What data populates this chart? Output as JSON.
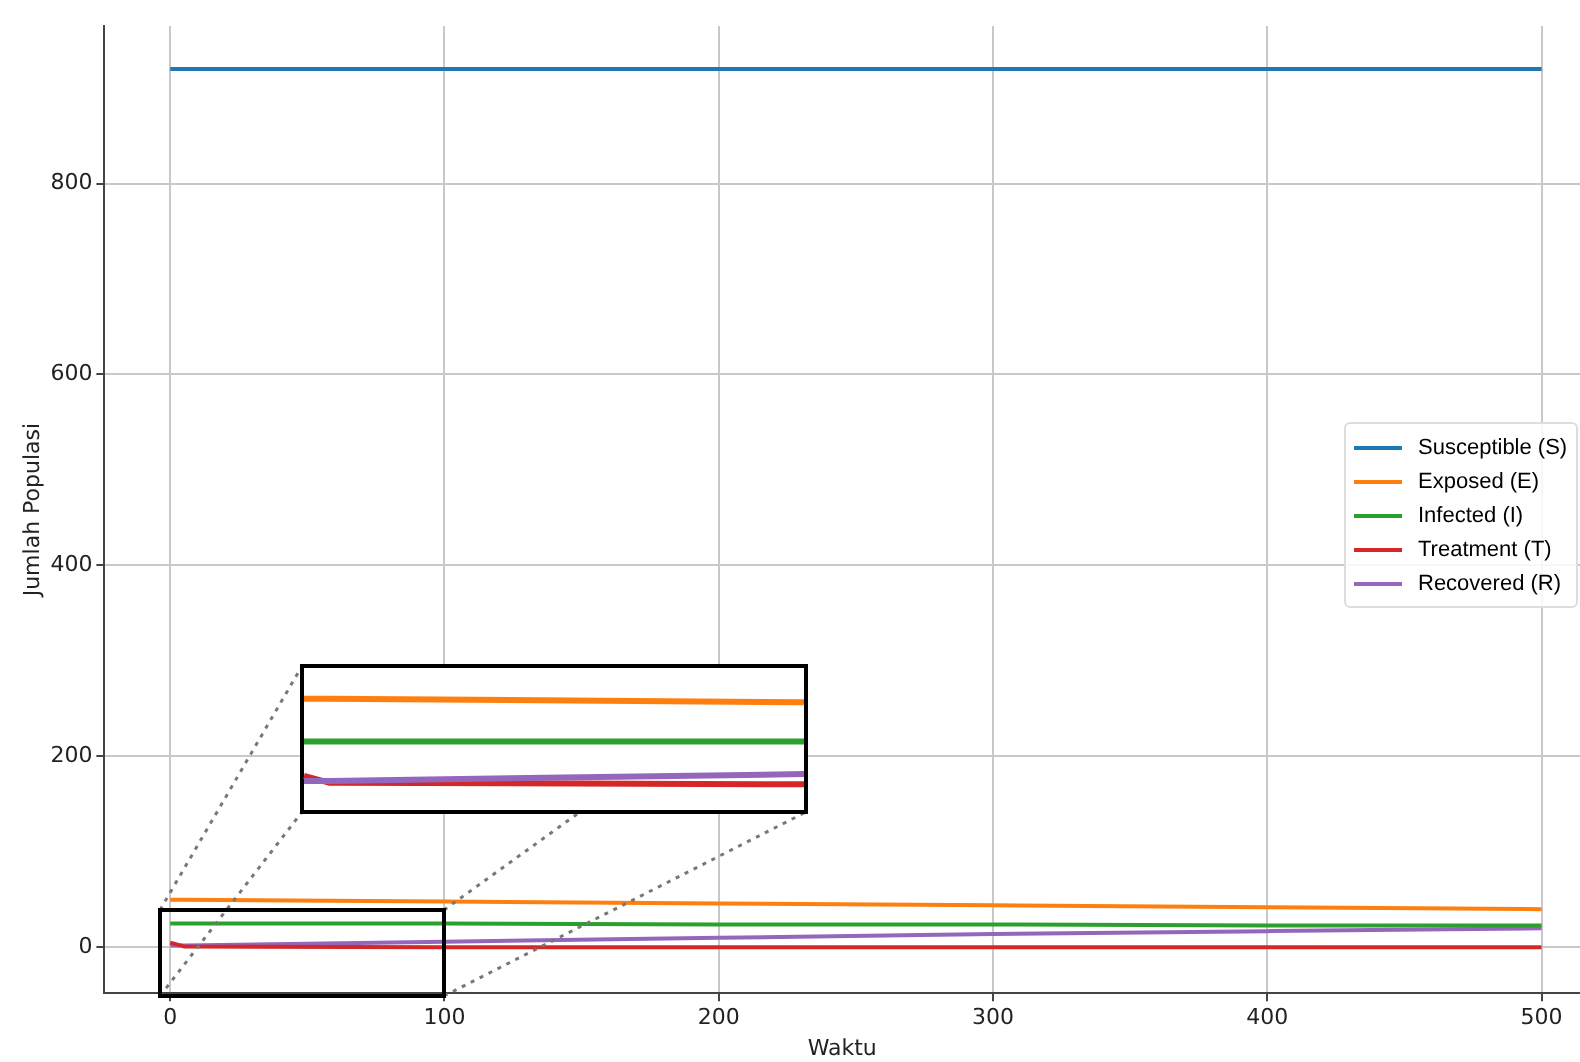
{
  "chart_data": {
    "type": "line",
    "xlabel": "Waktu",
    "ylabel": "Jumlah Populasi",
    "x": [
      0,
      5,
      100,
      200,
      300,
      400,
      500
    ],
    "series": [
      {
        "name": "Susceptible (S)",
        "color": "#1f77b4",
        "values": [
          920,
          920,
          920,
          920,
          920,
          920,
          920
        ]
      },
      {
        "name": "Exposed (E)",
        "color": "#ff7f0e",
        "values": [
          50,
          50,
          48,
          46,
          44,
          42,
          40
        ]
      },
      {
        "name": "Infected (I)",
        "color": "#2ca02c",
        "values": [
          25,
          25,
          25,
          24,
          24,
          23,
          23
        ]
      },
      {
        "name": "Treatment (T)",
        "color": "#d62728",
        "values": [
          5,
          1,
          0,
          0,
          0,
          0,
          0
        ]
      },
      {
        "name": "Recovered (R)",
        "color": "#9467bd",
        "values": [
          2,
          2,
          6,
          10,
          14,
          17,
          20
        ]
      }
    ],
    "xlim": [
      -24,
      514
    ],
    "ylim": [
      -48,
      965
    ],
    "xticks": [
      0,
      100,
      200,
      300,
      400,
      500
    ],
    "yticks": [
      0,
      200,
      400,
      600,
      800
    ],
    "grid": true,
    "legend": "right",
    "marker": "none",
    "line_style": "solid"
  }
}
